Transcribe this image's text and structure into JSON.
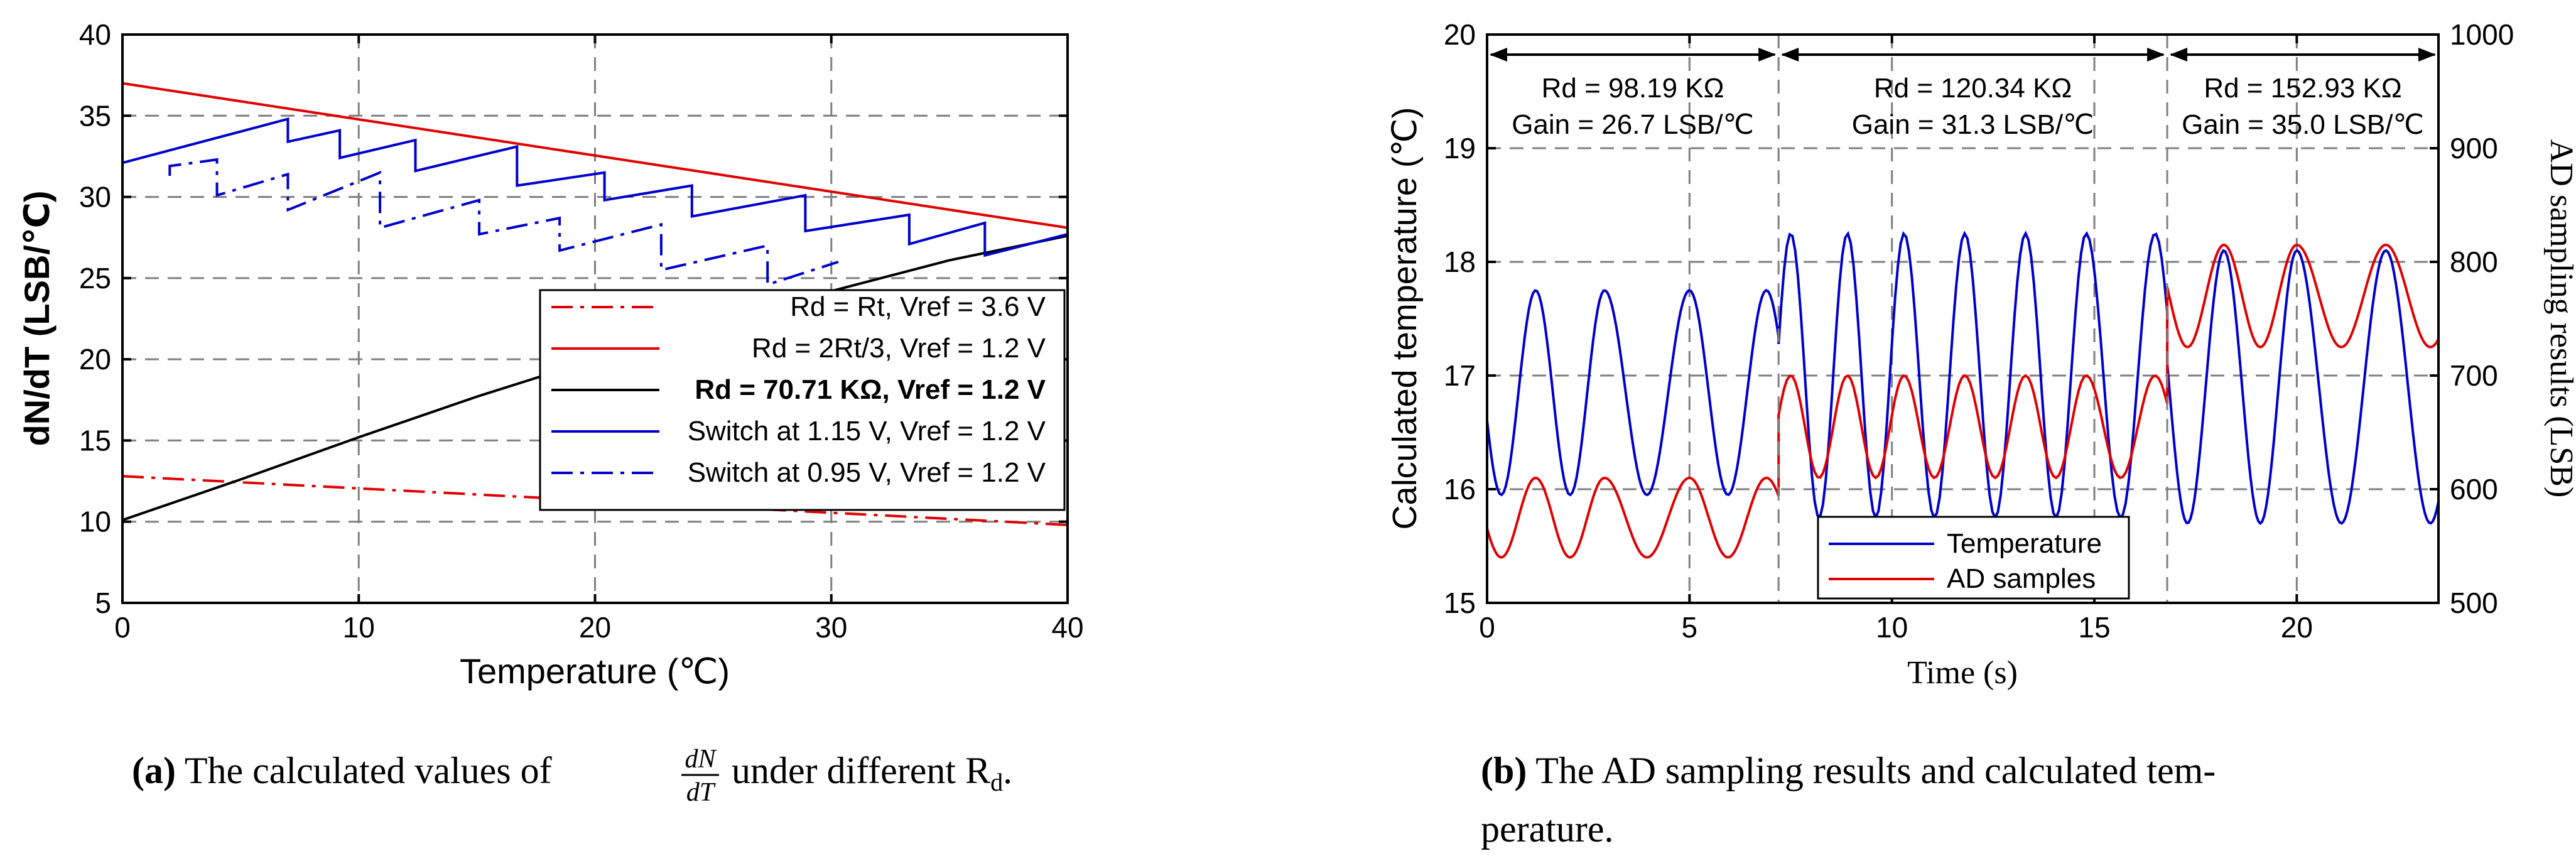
{
  "chart_data": [
    {
      "type": "line",
      "panel": "a",
      "xlabel": "Temperature (℃)",
      "ylabel": "dN/dT (LSB/℃)",
      "xlim": [
        0,
        40
      ],
      "ylim": [
        5,
        40
      ],
      "xticks": [
        "0",
        "10",
        "20",
        "30",
        "40"
      ],
      "yticks": [
        "5",
        "10",
        "15",
        "20",
        "25",
        "30",
        "35",
        "40"
      ],
      "grid": true,
      "legend_position": "lower-right",
      "series": [
        {
          "name": "Rd = Rt, Vref = 3.6 V",
          "color": "#e00000",
          "style": "dashdot",
          "x": [
            0,
            40
          ],
          "y": [
            12.8,
            9.8
          ]
        },
        {
          "name": "Rd = 2Rt/3, Vref = 1.2 V",
          "color": "#e00000",
          "style": "solid",
          "x": [
            0,
            40
          ],
          "y": [
            37.0,
            28.1
          ]
        },
        {
          "name": "Rd = 70.71 KΩ, Vref = 1.2 V",
          "color": "#000000",
          "style": "solid",
          "bold": true,
          "x": [
            0,
            5,
            10,
            15,
            20,
            25,
            30,
            35,
            40
          ],
          "y": [
            10.1,
            12.6,
            15.2,
            17.7,
            20.0,
            22.2,
            24.2,
            26.1,
            27.6
          ]
        },
        {
          "name": "Switch at 1.15 V, Vref = 1.2 V",
          "color": "#0000cc",
          "style": "solid",
          "x": [
            0,
            7.0,
            7.0,
            9.2,
            9.2,
            12.4,
            12.4,
            16.7,
            16.7,
            20.4,
            20.4,
            24.1,
            24.1,
            28.9,
            28.9,
            33.3,
            33.3,
            36.5,
            36.5,
            40
          ],
          "y": [
            32.1,
            34.8,
            33.4,
            34.1,
            32.4,
            33.5,
            31.6,
            33.1,
            30.7,
            31.5,
            29.8,
            30.7,
            28.8,
            30.1,
            27.9,
            28.9,
            27.1,
            28.4,
            26.4,
            27.7
          ]
        },
        {
          "name": "Switch at 0.95 V, Vref = 1.2 V",
          "color": "#0000cc",
          "style": "dashdot",
          "x": [
            2.0,
            2.0,
            4.0,
            4.0,
            7.0,
            7.0,
            10.9,
            10.9,
            15.1,
            15.1,
            18.5,
            18.5,
            22.8,
            22.8,
            27.3,
            27.3,
            30.3
          ],
          "y": [
            31.3,
            31.9,
            32.3,
            30.1,
            31.4,
            29.2,
            31.5,
            28.1,
            29.8,
            27.7,
            28.7,
            26.7,
            28.3,
            25.5,
            27.0,
            24.6,
            26.0
          ]
        }
      ]
    },
    {
      "type": "line",
      "panel": "b",
      "xlabel": "Time (s)",
      "ylabel": "Calculated temperature (℃)",
      "ylabel_right": "AD sampling results (LSB)",
      "xlim": [
        0,
        23.5
      ],
      "ylim": [
        15,
        20
      ],
      "ylim_right": [
        500,
        1000
      ],
      "xticks": [
        "0",
        "5",
        "10",
        "15",
        "20"
      ],
      "yticks": [
        "15",
        "16",
        "17",
        "18",
        "19",
        "20"
      ],
      "yticks_right": [
        "500",
        "600",
        "700",
        "800",
        "900",
        "1000"
      ],
      "grid": true,
      "legend_position": "bottom-center",
      "segments": [
        {
          "start": 0,
          "end": 7.2,
          "rd_label": "Rd = 98.19 KΩ",
          "gain_label": "Gain = 26.7 LSB/℃"
        },
        {
          "start": 7.2,
          "end": 16.8,
          "rd_label": "Rd = 120.34 KΩ",
          "gain_label": "Gain = 31.3 LSB/℃"
        },
        {
          "start": 16.8,
          "end": 23.5,
          "rd_label": "Rd = 152.93 KΩ",
          "gain_label": "Gain = 35.0 LSB/℃"
        }
      ],
      "series": [
        {
          "name": "Temperature",
          "color": "#0000cc",
          "axis": "left",
          "seg_centers": [
            16.85,
            17.0,
            16.9
          ],
          "seg_amplitudes": [
            0.9,
            1.25,
            1.2
          ],
          "seg_peaks": [
            [
              1.2,
              2.9,
              5.0,
              6.9
            ],
            [
              8.9,
              10.3,
              11.8,
              13.3,
              14.8,
              16.5
            ],
            [
              18.2,
              20.0,
              22.2
            ]
          ]
        },
        {
          "name": "AD samples",
          "color": "#e00000",
          "axis": "right",
          "seg_centers": [
            575,
            655,
            770
          ],
          "seg_amplitudes": [
            35,
            45,
            45
          ],
          "seg_peaks": [
            [
              1.2,
              2.9,
              5.0,
              6.9
            ],
            [
              8.9,
              10.3,
              11.8,
              13.3,
              14.8,
              16.5
            ],
            [
              18.2,
              20.0,
              22.2
            ]
          ]
        }
      ]
    }
  ],
  "captions": {
    "a": {
      "label": "(a)",
      "prefix": "The calculated values of",
      "frac_num": "dN",
      "frac_den": "dT",
      "suffix": "under different R",
      "sub": "d",
      "end": "."
    },
    "b": {
      "label": "(b)",
      "line1": "The AD sampling results and calculated tem-",
      "line2": "perature."
    }
  }
}
